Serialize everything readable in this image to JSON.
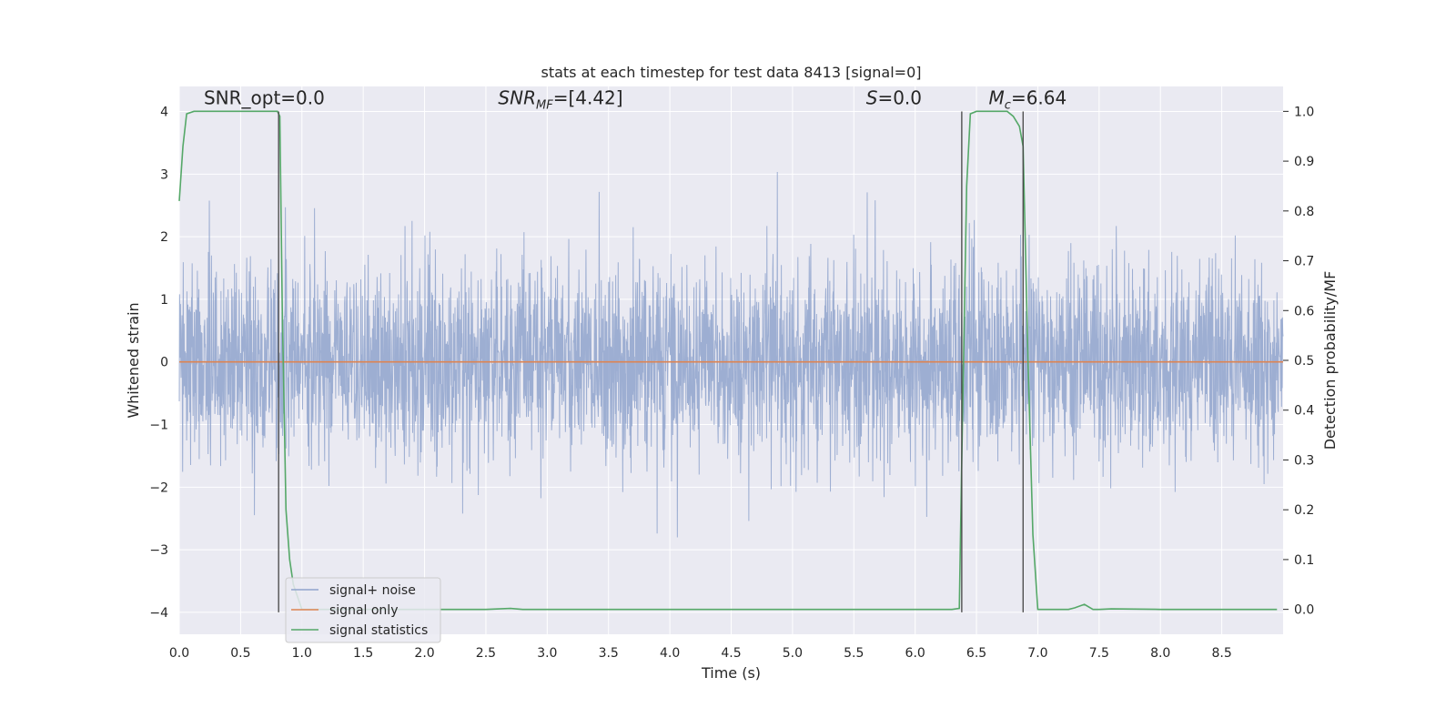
{
  "chart_data": {
    "type": "line",
    "title": "stats at each timestep for test data 8413 [signal=0]",
    "xlabel": "Time (s)",
    "ylabel": "Whitened strain",
    "y2label": "Detection probability/MF",
    "xlim": [
      0,
      9.0
    ],
    "ylim": [
      -4.35,
      4.4
    ],
    "y2lim": [
      -0.05,
      1.05
    ],
    "xticks": [
      "0.0",
      "0.5",
      "1.0",
      "1.5",
      "2.0",
      "2.5",
      "3.0",
      "3.5",
      "4.0",
      "4.5",
      "5.0",
      "5.5",
      "6.0",
      "6.5",
      "7.0",
      "7.5",
      "8.0",
      "8.5"
    ],
    "xtick_values": [
      0,
      0.5,
      1.0,
      1.5,
      2.0,
      2.5,
      3.0,
      3.5,
      4.0,
      4.5,
      5.0,
      5.5,
      6.0,
      6.5,
      7.0,
      7.5,
      8.0,
      8.5
    ],
    "yticks": [
      "−4",
      "−3",
      "−2",
      "−1",
      "0",
      "1",
      "2",
      "3",
      "4"
    ],
    "ytick_values": [
      -4,
      -3,
      -2,
      -1,
      0,
      1,
      2,
      3,
      4
    ],
    "y2ticks": [
      "0.0",
      "0.1",
      "0.2",
      "0.3",
      "0.4",
      "0.5",
      "0.6",
      "0.7",
      "0.8",
      "0.9",
      "1.0"
    ],
    "y2tick_values": [
      0.0,
      0.1,
      0.2,
      0.3,
      0.4,
      0.5,
      0.6,
      0.7,
      0.8,
      0.9,
      1.0
    ],
    "grid": true,
    "legend_position": "lower-left",
    "annotations": [
      {
        "text": "SNR_opt=0.0",
        "x": 0.2,
        "y": 4.12
      },
      {
        "text": "SNR_MF=[4.42]",
        "x": 2.6,
        "y": 4.12
      },
      {
        "text": "S=0.0",
        "x": 5.6,
        "y": 4.12
      },
      {
        "text": "M_c=6.64",
        "x": 6.6,
        "y": 4.12
      }
    ],
    "vertical_lines": [
      0.81,
      6.38,
      6.88
    ],
    "vertical_line_range": [
      -4.0,
      4.0
    ],
    "series": [
      {
        "name": "signal+ noise",
        "axis": "left",
        "color": "#8fa3cc",
        "kind": "noise",
        "std": 0.78,
        "x_range": [
          0,
          9.0
        ]
      },
      {
        "name": "signal only",
        "axis": "left",
        "color": "#dd8452",
        "kind": "line",
        "x": [
          0,
          9.0
        ],
        "y": [
          0,
          0
        ]
      },
      {
        "name": "signal statistics",
        "axis": "right",
        "color": "#55a868",
        "kind": "line",
        "x": [
          0,
          0.03,
          0.06,
          0.12,
          0.2,
          0.4,
          0.6,
          0.75,
          0.8,
          0.82,
          0.84,
          0.87,
          0.9,
          0.93,
          1.0,
          1.2,
          1.5,
          2.0,
          2.5,
          2.7,
          2.8,
          3.0,
          4.0,
          5.0,
          6.0,
          6.3,
          6.36,
          6.38,
          6.42,
          6.45,
          6.5,
          6.6,
          6.7,
          6.75,
          6.8,
          6.85,
          6.88,
          6.92,
          6.96,
          7.0,
          7.1,
          7.2,
          7.25,
          7.3,
          7.38,
          7.45,
          7.5,
          7.6,
          8.0,
          8.5,
          8.95
        ],
        "y": [
          0.82,
          0.93,
          0.995,
          1.0,
          1.0,
          1.0,
          1.0,
          1.0,
          1.0,
          0.99,
          0.6,
          0.2,
          0.1,
          0.05,
          0.0,
          0.0,
          0.0,
          0.0,
          0.0,
          0.002,
          0.0,
          0.0,
          0.0,
          0.0,
          0.0,
          0.0,
          0.002,
          0.3,
          0.85,
          0.995,
          1.0,
          1.0,
          1.0,
          1.0,
          0.99,
          0.97,
          0.93,
          0.5,
          0.15,
          0.0,
          0.0,
          0.0,
          0.0,
          0.003,
          0.01,
          0.0,
          0.0,
          0.001,
          0.0,
          0.0,
          0.0
        ]
      }
    ]
  }
}
